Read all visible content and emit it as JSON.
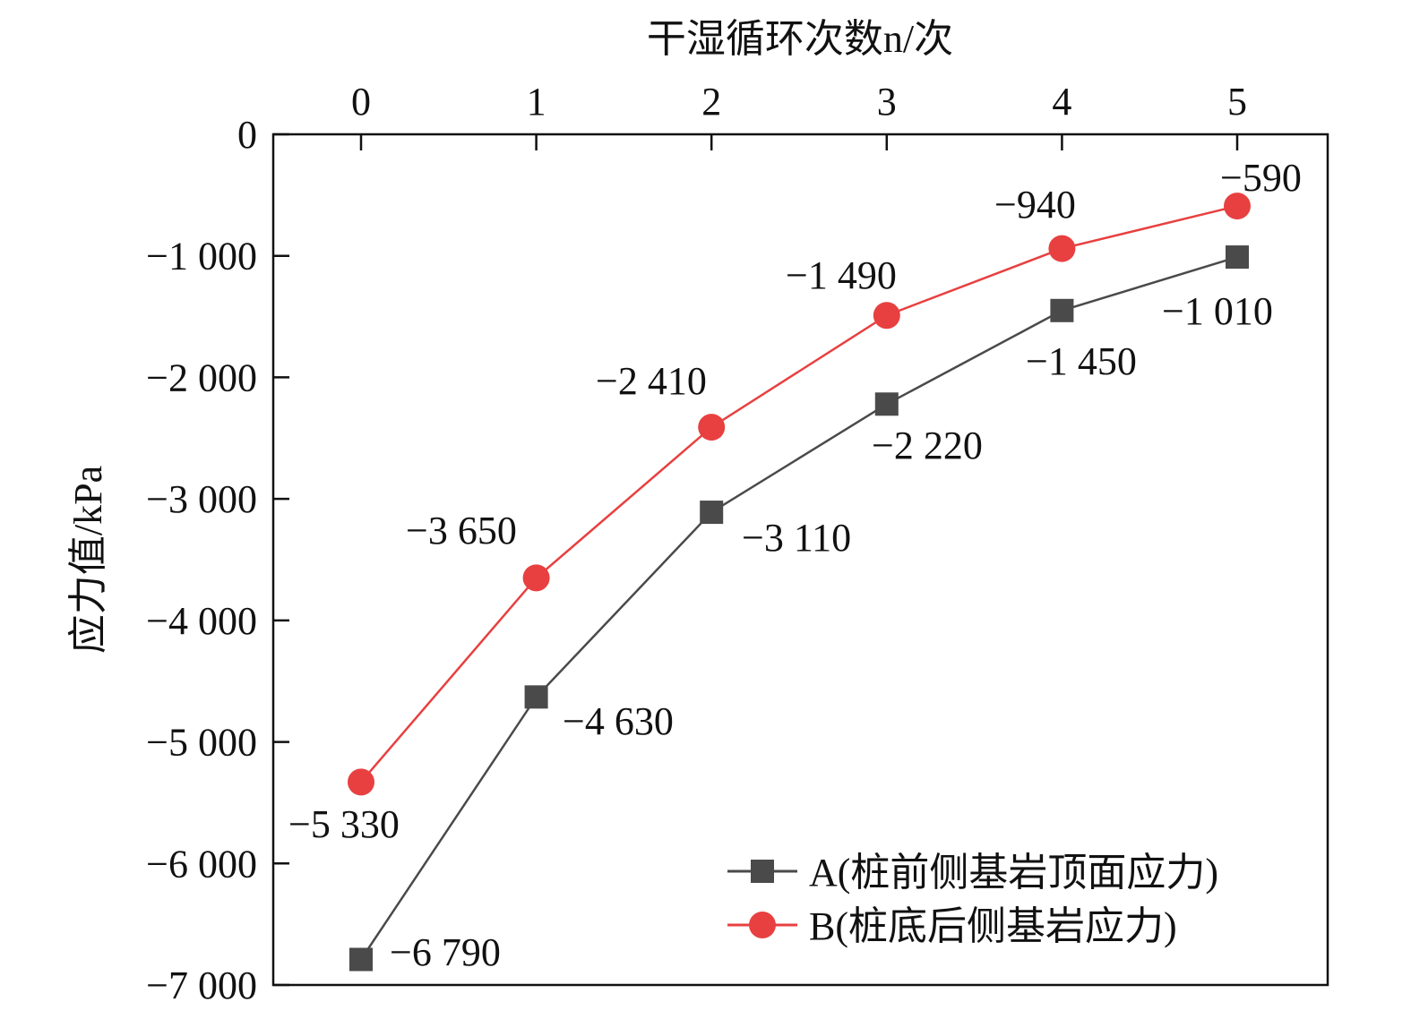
{
  "chart_data": {
    "type": "line",
    "xlabel": "干湿循环次数n/次",
    "ylabel": "应力值/kPa",
    "x": [
      0,
      1,
      2,
      3,
      4,
      5
    ],
    "xlim": [
      -0.5,
      5.5
    ],
    "ylim": [
      -7000,
      0
    ],
    "x_axis_position": "top",
    "xticks": [
      "0",
      "1",
      "2",
      "3",
      "4",
      "5"
    ],
    "yticks": [
      0,
      -1000,
      -2000,
      -3000,
      -4000,
      -5000,
      -6000,
      -7000
    ],
    "ytick_labels": [
      "0",
      "−1 000",
      "−2 000",
      "−3 000",
      "−4 000",
      "−5 000",
      "−6 000",
      "−7 000"
    ],
    "grid": false,
    "legend_position": "bottom-right",
    "series": [
      {
        "name": "A(桩前侧基岩顶面应力)",
        "marker": "square",
        "color": "#4a4a4a",
        "values": [
          -6790,
          -4630,
          -3110,
          -2220,
          -1450,
          -1010
        ],
        "labels": [
          "−6 790",
          "−4 630",
          "−3 110",
          "−2 220",
          "−1 450",
          "−1 010"
        ]
      },
      {
        "name": "B(桩底后侧基岩应力)",
        "marker": "circle",
        "color": "#e84040",
        "values": [
          -5330,
          -3650,
          -2410,
          -1490,
          -940,
          -590
        ],
        "labels": [
          "−5 330",
          "−3 650",
          "−2 410",
          "−1 490",
          "−940",
          "−590"
        ]
      }
    ]
  }
}
